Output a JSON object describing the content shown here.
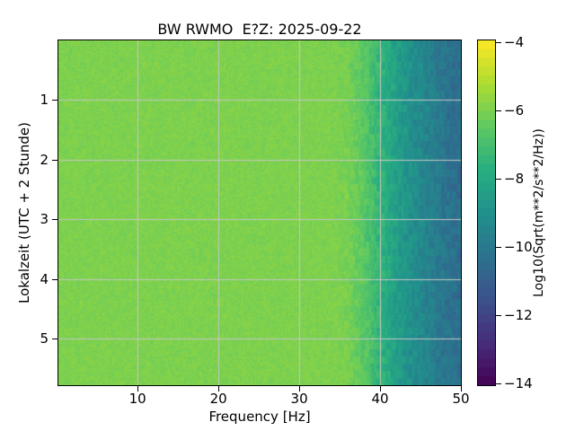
{
  "chart_data": {
    "type": "heatmap",
    "title": "BW RWMO  E?Z: 2025-09-22",
    "xlabel": "Frequency [Hz]",
    "ylabel": "Lokalzeit (UTC + 2 Stunde)",
    "x_ticks": [
      10,
      20,
      30,
      40,
      50
    ],
    "y_ticks": [
      1,
      2,
      3,
      4,
      5
    ],
    "x_range_hz": [
      0.2,
      50
    ],
    "y_range_hours": [
      0,
      5.78
    ],
    "grid": true,
    "grid_color": "#c6c6c6",
    "colormap": "viridis",
    "colormap_stops": [
      [
        0.0,
        "#440154"
      ],
      [
        0.125,
        "#472d7b"
      ],
      [
        0.25,
        "#3b528b"
      ],
      [
        0.375,
        "#2c728e"
      ],
      [
        0.5,
        "#21918c"
      ],
      [
        0.625,
        "#28ae80"
      ],
      [
        0.75,
        "#5ec962"
      ],
      [
        0.875,
        "#addc30"
      ],
      [
        1.0,
        "#fde725"
      ]
    ],
    "colorbar": {
      "label": "Log10(Sqrt(m**2/s**2/Hz))",
      "ticks": [
        -4,
        -6,
        -8,
        -10,
        -12,
        -14
      ],
      "vmin": -14,
      "vmax": -4,
      "steps": 39
    },
    "spectrum_profile": {
      "frequencies_hz": [
        0.2,
        30,
        34,
        36,
        38,
        40,
        42,
        44,
        46,
        48,
        50
      ],
      "values_log10": [
        -6.0,
        -6.0,
        -6.0,
        -6.1,
        -6.6,
        -7.5,
        -8.4,
        -9.1,
        -9.6,
        -10.1,
        -10.45
      ]
    },
    "noise": {
      "cell_amplitude": 0.18,
      "streak_amplitude": 0.35,
      "streak_base": 0.06,
      "streak_onset_hz": 34,
      "streak_ramp_hz": 6
    }
  }
}
